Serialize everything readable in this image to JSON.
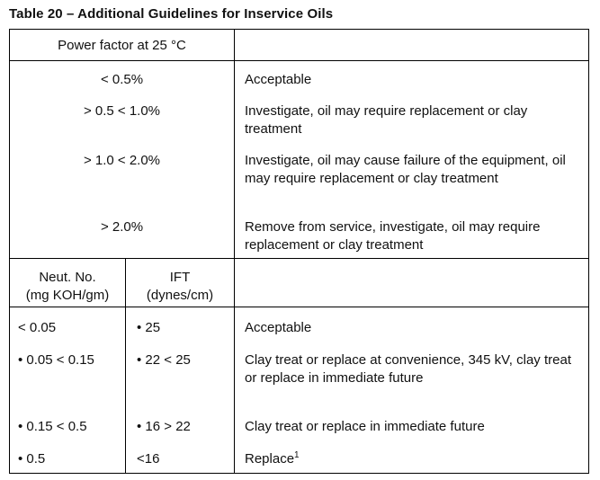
{
  "title": "Table 20 – Additional Guidelines for Inservice Oils",
  "pf_section": {
    "header": "Power factor at 25 °C",
    "rows": [
      {
        "range": "< 0.5%",
        "guideline": "Acceptable"
      },
      {
        "range": "> 0.5 < 1.0%",
        "guideline": "Investigate, oil may require replacement or clay treatment"
      },
      {
        "range": "> 1.0 < 2.0%",
        "guideline": "Investigate, oil may cause failure of the equipment, oil may require replacement or clay treatment"
      },
      {
        "range": "> 2.0%",
        "guideline": "Remove from service, investigate, oil may require replacement or clay treatment"
      }
    ]
  },
  "neut_section": {
    "col1_header_1": "Neut. No.",
    "col1_header_2": "(mg KOH/gm)",
    "col2_header_1": "IFT",
    "col2_header_2": "(dynes/cm)",
    "rows": [
      {
        "neut": "< 0.05",
        "ift": "• 25",
        "guideline": "Acceptable",
        "footnote": ""
      },
      {
        "neut": "• 0.05 < 0.15",
        "ift": "• 22 < 25",
        "guideline": "Clay treat or replace at convenience, 345 kV, clay treat or replace in immediate future",
        "footnote": ""
      },
      {
        "neut": "• 0.15 < 0.5",
        "ift": "• 16 > 22",
        "guideline": "Clay treat or replace in immediate future",
        "footnote": ""
      },
      {
        "neut": "• 0.5",
        "ift": "<16",
        "guideline": "Replace",
        "footnote": "1"
      }
    ]
  }
}
